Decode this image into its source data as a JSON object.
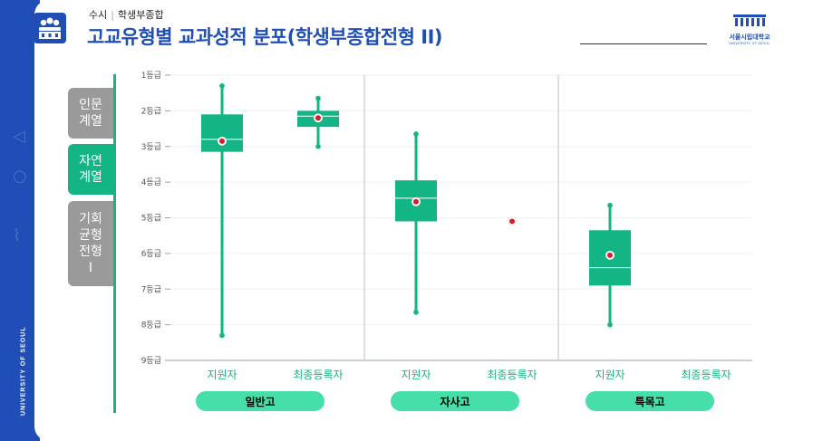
{
  "header": {
    "category": "수시",
    "subcategory": "학생부종합",
    "title": "고교유형별 교과성적 분포(학생부종합전형 II)"
  },
  "logo": {
    "name": "서울시립대학교",
    "sub": "UNIVERSITY OF SEOUL"
  },
  "sidebar": {
    "vertical_text": "UNIVERSITY OF SEOUL",
    "tabs": [
      {
        "label": "인문\n계열",
        "active": false
      },
      {
        "label": "자연\n계열",
        "active": true
      },
      {
        "label": "기회\n균형\n전형\nⅠ",
        "active": false
      }
    ]
  },
  "colors": {
    "brand_blue": "#1f4fb6",
    "box_green": "#14b584",
    "pill_green": "#46dfa9",
    "mean_red": "#d2202a",
    "tab_gray": "#9a9a9a"
  },
  "chart_data": {
    "type": "boxplot",
    "y_ticks": [
      "1등급",
      "2등급",
      "3등급",
      "4등급",
      "5등급",
      "6등급",
      "7등급",
      "8등급",
      "9등급"
    ],
    "ylim": [
      1,
      9
    ],
    "y_inverted": true,
    "groups": [
      {
        "name": "일반고",
        "series": [
          {
            "label": "지원자",
            "min": 1.3,
            "q1": 2.1,
            "median": 2.8,
            "q3": 3.15,
            "max": 8.3,
            "mean": 2.85
          },
          {
            "label": "최종등록자",
            "min": 1.65,
            "q1": 2.0,
            "median": 2.15,
            "q3": 2.45,
            "max": 3.0,
            "mean": 2.2
          }
        ]
      },
      {
        "name": "자사고",
        "series": [
          {
            "label": "지원자",
            "min": 2.65,
            "q1": 3.95,
            "median": 4.45,
            "q3": 5.1,
            "max": 7.65,
            "mean": 4.55
          },
          {
            "label": "최종등록자",
            "mean": 5.1
          }
        ]
      },
      {
        "name": "특목고",
        "series": [
          {
            "label": "지원자",
            "min": 4.65,
            "q1": 5.35,
            "median": 6.4,
            "q3": 6.9,
            "max": 8.0,
            "mean": 6.05
          },
          {
            "label": "최종등록자"
          }
        ]
      }
    ]
  }
}
